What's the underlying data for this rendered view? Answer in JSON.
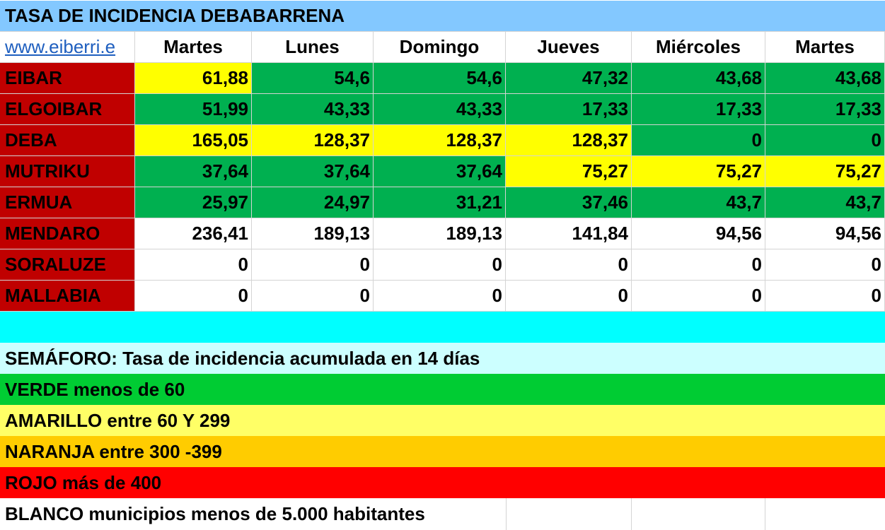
{
  "title": "TASA DE INCIDENCIA DEBABARRENA",
  "link_text": "www.eiberri.e",
  "days": [
    "Martes",
    "Lunes",
    "Domingo",
    "Jueves",
    "Miércoles",
    "Martes"
  ],
  "colors": {
    "title_band": "#83c8ff",
    "municipio": "#c00000",
    "green": "#00b050",
    "yellow": "#ffff00",
    "white": "#ffffff",
    "spacer": "#00ffff",
    "semaforo": "#ccffff",
    "verde": "#00cc33",
    "amarillo": "#ffff66",
    "naranja": "#ffcc00",
    "rojo": "#ff0000",
    "blanco": "#ffffff",
    "link": "#1f5fbf"
  },
  "rows": [
    {
      "name": "EIBAR",
      "values": [
        "61,88",
        "54,6",
        "54,6",
        "47,32",
        "43,68",
        "43,68"
      ],
      "status": [
        "yellow",
        "green",
        "green",
        "green",
        "green",
        "green"
      ]
    },
    {
      "name": "ELGOIBAR",
      "values": [
        "51,99",
        "43,33",
        "43,33",
        "17,33",
        "17,33",
        "17,33"
      ],
      "status": [
        "green",
        "green",
        "green",
        "green",
        "green",
        "green"
      ]
    },
    {
      "name": "DEBA",
      "values": [
        "165,05",
        "128,37",
        "128,37",
        "128,37",
        "0",
        "0"
      ],
      "status": [
        "yellow",
        "yellow",
        "yellow",
        "yellow",
        "green",
        "green"
      ]
    },
    {
      "name": "MUTRIKU",
      "values": [
        "37,64",
        "37,64",
        "37,64",
        "75,27",
        "75,27",
        "75,27"
      ],
      "status": [
        "green",
        "green",
        "green",
        "yellow",
        "yellow",
        "yellow"
      ]
    },
    {
      "name": "ERMUA",
      "values": [
        "25,97",
        "24,97",
        "31,21",
        "37,46",
        "43,7",
        "43,7"
      ],
      "status": [
        "green",
        "green",
        "green",
        "green",
        "green",
        "green"
      ]
    },
    {
      "name": "MENDARO",
      "values": [
        "236,41",
        "189,13",
        "189,13",
        "141,84",
        "94,56",
        "94,56"
      ],
      "status": [
        "white",
        "white",
        "white",
        "white",
        "white",
        "white"
      ]
    },
    {
      "name": "SORALUZE",
      "values": [
        "0",
        "0",
        "0",
        "0",
        "0",
        "0"
      ],
      "status": [
        "white",
        "white",
        "white",
        "white",
        "white",
        "white"
      ]
    },
    {
      "name": "MALLABIA",
      "values": [
        "0",
        "0",
        "0",
        "0",
        "0",
        "0"
      ],
      "status": [
        "white",
        "white",
        "white",
        "white",
        "white",
        "white"
      ]
    }
  ],
  "legend": {
    "header": "SEMÁFORO:  Tasa de incidencia acumulada en 14 días",
    "verde": "VERDE menos de 60",
    "amarillo": "AMARILLO entre 60 Y 299",
    "naranja": "NARANJA entre 300 -399",
    "rojo": "ROJO más de 400",
    "blanco": "BLANCO municipios menos de 5.000 habitantes"
  }
}
